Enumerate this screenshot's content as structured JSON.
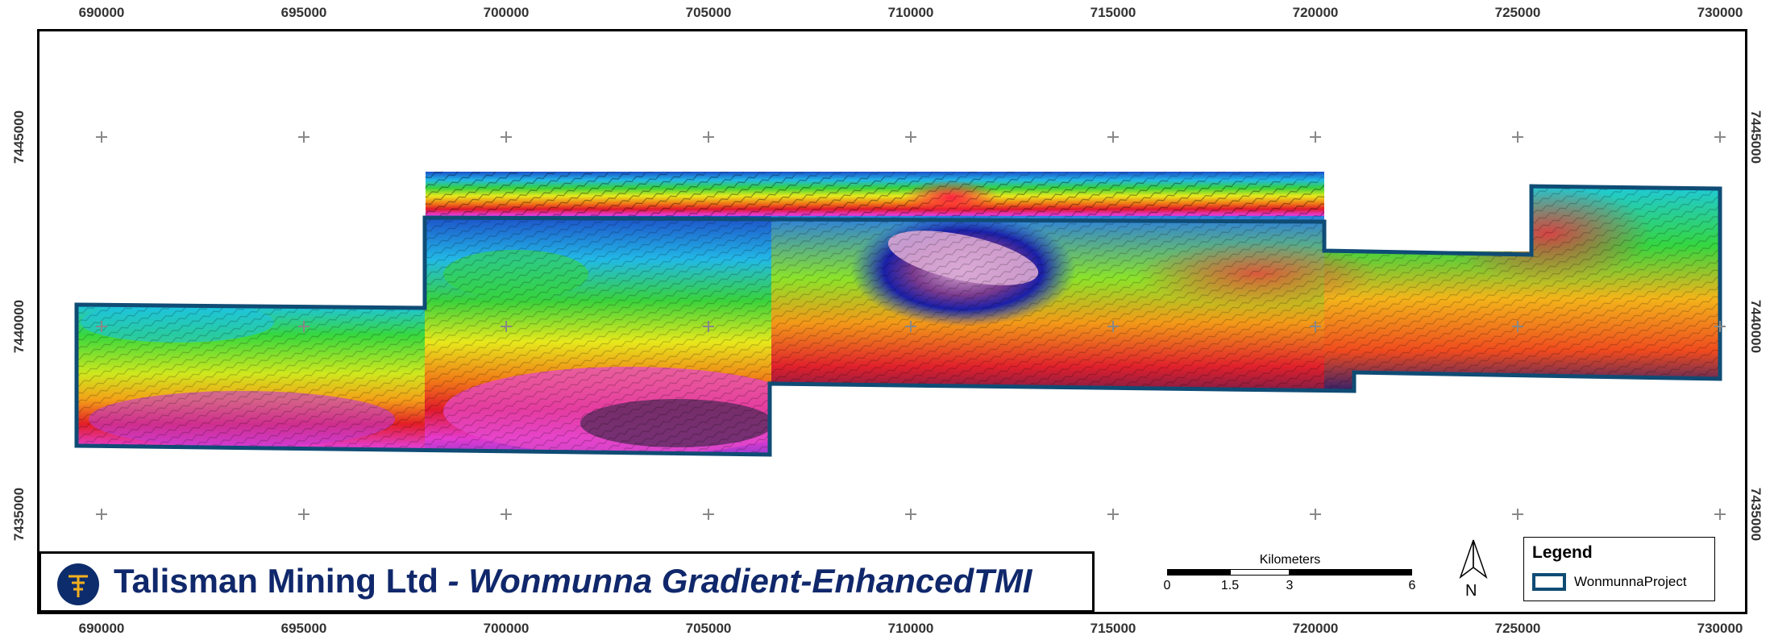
{
  "map": {
    "x_ticks": [
      "690000",
      "695000",
      "700000",
      "705000",
      "710000",
      "715000",
      "720000",
      "725000",
      "730000"
    ],
    "y_ticks": [
      "7445000",
      "7440000",
      "7435000"
    ]
  },
  "title": {
    "company": "Talisman Mining Ltd",
    "separator": " - ",
    "subtitle": "Wonmunna Gradient-EnhancedTMI"
  },
  "scale_bar": {
    "unit": "Kilometers",
    "labels": [
      "0",
      "1.5",
      "3",
      "6"
    ]
  },
  "north_arrow": {
    "label": "N",
    "icon": "north-arrow-icon"
  },
  "legend": {
    "title": "Legend",
    "items": [
      {
        "label": "WonmunnaProject",
        "color": "#0f4c75"
      }
    ]
  },
  "colors": {
    "title_text": "#10286b",
    "project_outline": "#0f4c75"
  }
}
